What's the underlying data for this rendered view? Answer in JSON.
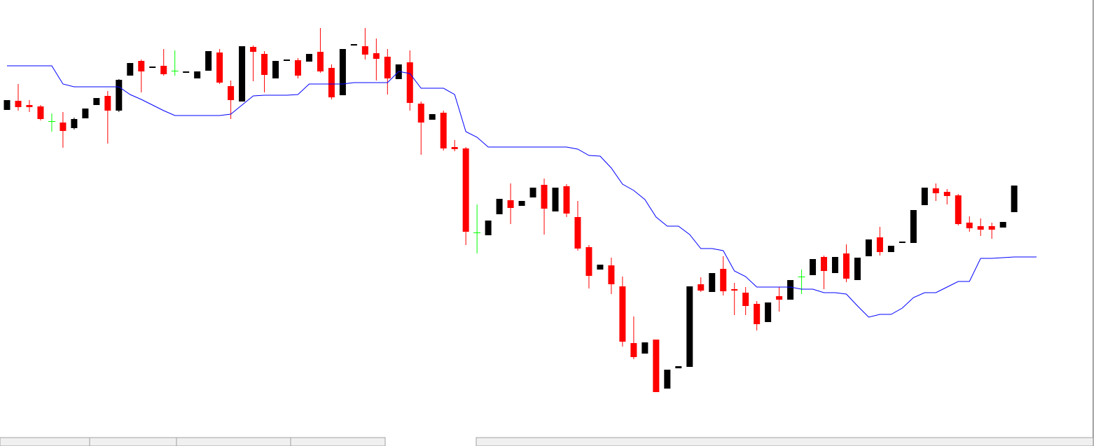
{
  "chart_data": {
    "type": "candlestick",
    "categories": [
      null,
      null,
      null,
      null,
      null,
      null,
      null,
      null,
      null,
      null,
      null,
      null,
      null,
      null,
      null,
      null,
      null,
      null,
      null,
      null,
      null,
      null,
      null,
      null,
      null,
      null,
      null,
      null,
      null,
      null,
      null,
      null,
      null,
      null,
      null,
      null,
      null,
      null,
      null,
      null,
      null,
      null,
      null,
      null,
      null,
      null,
      null,
      null,
      null,
      null,
      null,
      null,
      null,
      null,
      null,
      null,
      null,
      null,
      null,
      null,
      null,
      null,
      null,
      null,
      null,
      null,
      null,
      null,
      null,
      null,
      null,
      null,
      null,
      null,
      null,
      null,
      null,
      null,
      null,
      null,
      null,
      null,
      null,
      null,
      null,
      null,
      null,
      null,
      null,
      null,
      null,
      null,
      null
    ],
    "ylim": [
      3,
      640
    ],
    "up_color": "#000000",
    "down_color": "#ff0000",
    "doji_color": "#00ff00",
    "candles": {
      "open": [
        483,
        496,
        490,
        488,
        466,
        465,
        457,
        471,
        490,
        503,
        482,
        532,
        553,
        544,
        546,
        538,
        537,
        528,
        539,
        565,
        517,
        495,
        573,
        563,
        528,
        554,
        554,
        552,
        566,
        543,
        504,
        576,
        574,
        564,
        559,
        527,
        551,
        492,
        469,
        479,
        430,
        428,
        307,
        304,
        334,
        354,
        346,
        358,
        376,
        338,
        374,
        330,
        287,
        255,
        261,
        231,
        150,
        135,
        155,
        85,
        114,
        116,
        234,
        223,
        256,
        227,
        222,
        206,
        180,
        217,
        212,
        244,
        247,
        273,
        250,
        278,
        240,
        274,
        301,
        280,
        294,
        293,
        347,
        371,
        366,
        361,
        322,
        317,
        317,
        315,
        337,
        null,
        null
      ],
      "high": [
        497,
        520,
        497,
        490,
        478,
        480,
        472,
        485,
        500,
        510,
        527,
        550,
        555,
        544,
        570,
        568,
        537,
        538,
        567,
        570,
        525,
        574,
        575,
        567,
        553,
        554,
        557,
        563,
        600,
        548,
        570,
        576,
        600,
        585,
        570,
        548,
        568,
        495,
        477,
        482,
        440,
        430,
        348,
        325,
        356,
        378,
        353,
        372,
        385,
        372,
        377,
        353,
        290,
        262,
        272,
        245,
        188,
        151,
        155,
        112,
        117,
        231,
        244,
        250,
        274,
        236,
        230,
        210,
        208,
        230,
        240,
        255,
        270,
        275,
        273,
        291,
        272,
        298,
        316,
        289,
        294,
        340,
        372,
        378,
        370,
        363,
        331,
        328,
        322,
        323,
        375,
        null,
        null
      ],
      "low": [
        483,
        482,
        480,
        468,
        452,
        429,
        455,
        471,
        490,
        435,
        480,
        532,
        508,
        544,
        532,
        532,
        537,
        528,
        539,
        520,
        470,
        495,
        524,
        508,
        528,
        554,
        528,
        552,
        536,
        498,
        504,
        576,
        555,
        525,
        505,
        527,
        482,
        419,
        469,
        425,
        424,
        290,
        278,
        304,
        334,
        320,
        346,
        358,
        305,
        338,
        330,
        282,
        228,
        255,
        220,
        145,
        127,
        135,
        80,
        85,
        114,
        116,
        223,
        223,
        218,
        190,
        190,
        168,
        180,
        195,
        212,
        220,
        247,
        227,
        250,
        237,
        240,
        274,
        275,
        280,
        294,
        293,
        347,
        353,
        348,
        318,
        309,
        303,
        299,
        315,
        337,
        null,
        null
      ],
      "close": [
        497,
        487,
        487,
        470,
        466,
        453,
        470,
        485,
        500,
        482,
        526,
        550,
        538,
        544,
        534,
        538,
        537,
        538,
        567,
        522,
        497,
        574,
        566,
        533,
        553,
        554,
        532,
        563,
        538,
        501,
        570,
        576,
        562,
        556,
        528,
        548,
        493,
        465,
        477,
        428,
        427,
        309,
        307,
        325,
        356,
        343,
        353,
        372,
        342,
        372,
        335,
        285,
        246,
        262,
        234,
        152,
        130,
        151,
        80,
        112,
        117,
        231,
        225,
        250,
        224,
        225,
        203,
        177,
        208,
        212,
        240,
        244,
        270,
        253,
        273,
        242,
        272,
        298,
        280,
        289,
        294,
        340,
        372,
        364,
        360,
        320,
        314,
        312,
        312,
        323,
        375,
        null,
        null
      ]
    },
    "series": [
      {
        "color": "#0000ff",
        "values": [
          546,
          546,
          546,
          546,
          546,
          520,
          516,
          516,
          516,
          516,
          516,
          505,
          498,
          490,
          482,
          475,
          475,
          475,
          475,
          475,
          477,
          490,
          503,
          504,
          504,
          504,
          505,
          520,
          520,
          520,
          520,
          522,
          522,
          522,
          522,
          538,
          535,
          514,
          514,
          514,
          505,
          452,
          444,
          430,
          430,
          430,
          430,
          430,
          430,
          430,
          430,
          427,
          418,
          417,
          400,
          377,
          368,
          355,
          330,
          317,
          317,
          305,
          285,
          285,
          282,
          253,
          245,
          230,
          230,
          230,
          230,
          227,
          227,
          222,
          222,
          220,
          203,
          187,
          191,
          191,
          200,
          215,
          222,
          222,
          230,
          238,
          238,
          271,
          271,
          272,
          273,
          273,
          273
        ]
      }
    ]
  }
}
